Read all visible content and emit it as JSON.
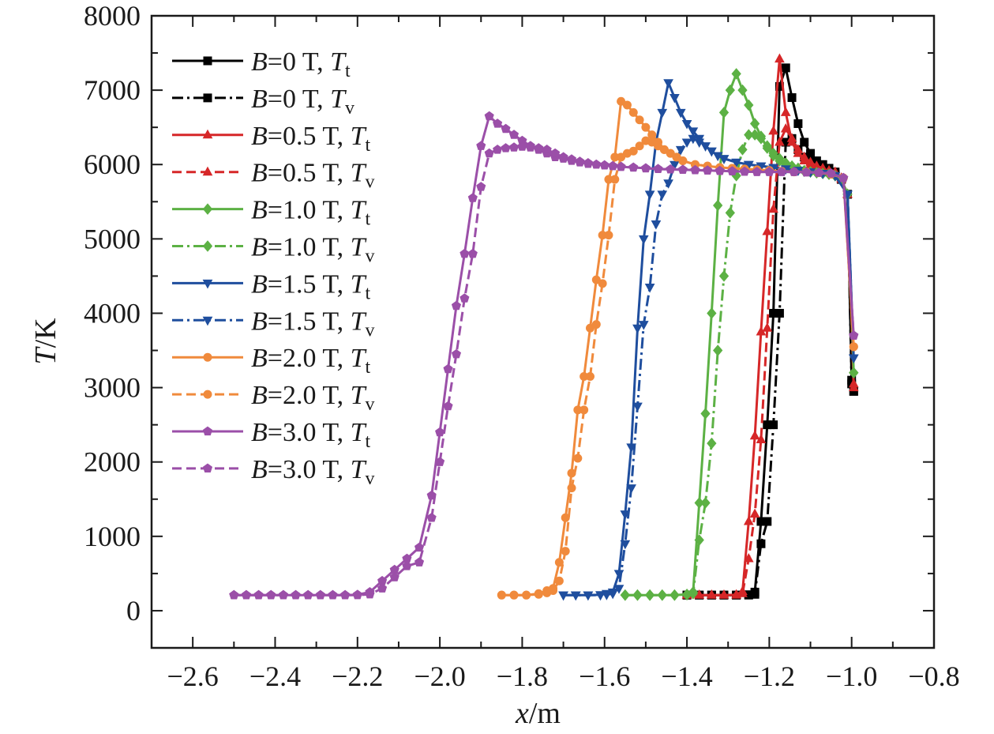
{
  "chart_data": {
    "type": "line",
    "title": "",
    "xlabel": {
      "var": "x",
      "unit": "/m"
    },
    "ylabel": {
      "var": "T",
      "unit": "/K"
    },
    "xlim": [
      -2.7,
      -0.8
    ],
    "ylim": [
      -500,
      8000
    ],
    "x_ticks": [
      -2.6,
      -2.4,
      -2.2,
      -2.0,
      -1.8,
      -1.6,
      -1.4,
      -1.2,
      -1.0,
      -0.8
    ],
    "x_tick_labels": [
      "−2.6",
      "−2.4",
      "−2.2",
      "−2.0",
      "−1.8",
      "−1.6",
      "−1.4",
      "−1.2",
      "−1.0",
      "−0.8"
    ],
    "y_ticks": [
      0,
      1000,
      2000,
      3000,
      4000,
      5000,
      6000,
      7000,
      8000
    ],
    "y_tick_labels": [
      "0",
      "1000",
      "2000",
      "3000",
      "4000",
      "5000",
      "6000",
      "7000",
      "8000"
    ],
    "legend_position": "top-left",
    "series": [
      {
        "legend": {
          "prefix": "B",
          "value": "=0 T, ",
          "var": "T",
          "sub": "t"
        },
        "color": "#000000",
        "dash": "solid",
        "marker": "square",
        "x": [
          -1.4,
          -1.37,
          -1.34,
          -1.31,
          -1.28,
          -1.25,
          -1.235,
          -1.22,
          -1.205,
          -1.19,
          -1.175,
          -1.16,
          -1.145,
          -1.13,
          -1.115,
          -1.1,
          -1.085,
          -1.07,
          -1.055,
          -1.04,
          -1.025,
          -1.01,
          -1.0,
          -0.995
        ],
        "y": [
          210,
          210,
          210,
          210,
          210,
          215,
          250,
          1200,
          2500,
          4000,
          7050,
          7300,
          6900,
          6550,
          6300,
          6150,
          6050,
          6000,
          5950,
          5900,
          5800,
          5600,
          3100,
          2950
        ]
      },
      {
        "legend": {
          "prefix": "B",
          "value": "=0 T, ",
          "var": "T",
          "sub": "v"
        },
        "color": "#000000",
        "dash": "dashdot",
        "marker": "square",
        "x": [
          -1.4,
          -1.37,
          -1.34,
          -1.31,
          -1.28,
          -1.25,
          -1.235,
          -1.22,
          -1.205,
          -1.19,
          -1.175,
          -1.16,
          -1.145,
          -1.13,
          -1.115,
          -1.1,
          -1.085,
          -1.07,
          -1.055,
          -1.04,
          -1.025,
          -1.01,
          -1.0,
          -0.995
        ],
        "y": [
          210,
          210,
          210,
          210,
          210,
          210,
          220,
          900,
          1200,
          2500,
          4000,
          6300,
          6350,
          6200,
          6100,
          6050,
          6000,
          5950,
          5900,
          5870,
          5800,
          5600,
          3050,
          2950
        ]
      },
      {
        "legend": {
          "prefix": "B",
          "value": "=0.5 T, ",
          "var": "T",
          "sub": "t"
        },
        "color": "#d62728",
        "dash": "solid",
        "marker": "triangle-up",
        "x": [
          -1.4,
          -1.37,
          -1.34,
          -1.31,
          -1.28,
          -1.265,
          -1.25,
          -1.235,
          -1.22,
          -1.205,
          -1.19,
          -1.175,
          -1.16,
          -1.145,
          -1.13,
          -1.115,
          -1.1,
          -1.085,
          -1.07,
          -1.055,
          -1.04,
          -1.025,
          -1.01,
          -0.995
        ],
        "y": [
          210,
          210,
          210,
          210,
          215,
          260,
          1200,
          2350,
          3750,
          5100,
          6450,
          7420,
          6700,
          6300,
          6150,
          6050,
          6000,
          5950,
          5920,
          5900,
          5880,
          5800,
          5600,
          3050
        ]
      },
      {
        "legend": {
          "prefix": "B",
          "value": "=0.5 T, ",
          "var": "T",
          "sub": "v"
        },
        "color": "#d62728",
        "dash": "dash",
        "marker": "triangle-up",
        "x": [
          -1.4,
          -1.37,
          -1.34,
          -1.31,
          -1.28,
          -1.265,
          -1.25,
          -1.235,
          -1.22,
          -1.205,
          -1.19,
          -1.175,
          -1.16,
          -1.145,
          -1.13,
          -1.115,
          -1.1,
          -1.085,
          -1.07,
          -1.055,
          -1.04,
          -1.025,
          -1.01,
          -0.995
        ],
        "y": [
          210,
          210,
          210,
          210,
          210,
          230,
          700,
          1300,
          2300,
          3800,
          5400,
          6300,
          6480,
          6350,
          6200,
          6100,
          6030,
          5980,
          5950,
          5920,
          5900,
          5820,
          5600,
          3000
        ]
      },
      {
        "legend": {
          "prefix": "B",
          "value": "=1.0 T, ",
          "var": "T",
          "sub": "t"
        },
        "color": "#5cb144",
        "dash": "solid",
        "marker": "diamond",
        "x": [
          -1.55,
          -1.52,
          -1.49,
          -1.46,
          -1.43,
          -1.4,
          -1.385,
          -1.37,
          -1.355,
          -1.34,
          -1.325,
          -1.31,
          -1.295,
          -1.28,
          -1.265,
          -1.25,
          -1.235,
          -1.22,
          -1.205,
          -1.19,
          -1.175,
          -1.16,
          -1.145,
          -1.13,
          -1.115,
          -1.1,
          -1.085,
          -1.07,
          -1.055,
          -1.04,
          -1.025,
          -1.01,
          -0.995
        ],
        "y": [
          210,
          210,
          210,
          210,
          210,
          220,
          250,
          1450,
          2650,
          4000,
          5450,
          6700,
          7000,
          7220,
          7000,
          6800,
          6550,
          6380,
          6220,
          6120,
          6050,
          6000,
          5960,
          5930,
          5910,
          5900,
          5890,
          5880,
          5870,
          5850,
          5800,
          5600,
          3200
        ]
      },
      {
        "legend": {
          "prefix": "B",
          "value": "=1.0 T, ",
          "var": "T",
          "sub": "v"
        },
        "color": "#5cb144",
        "dash": "dashdot",
        "marker": "diamond",
        "x": [
          -1.55,
          -1.52,
          -1.49,
          -1.46,
          -1.43,
          -1.4,
          -1.385,
          -1.37,
          -1.355,
          -1.34,
          -1.325,
          -1.31,
          -1.295,
          -1.28,
          -1.265,
          -1.25,
          -1.235,
          -1.22,
          -1.205,
          -1.19,
          -1.175,
          -1.16,
          -1.145,
          -1.13,
          -1.115,
          -1.1,
          -1.085,
          -1.07,
          -1.055,
          -1.04,
          -1.025,
          -1.01,
          -0.995
        ],
        "y": [
          210,
          210,
          210,
          210,
          210,
          215,
          230,
          950,
          1450,
          2250,
          3500,
          4500,
          5350,
          5850,
          6200,
          6400,
          6400,
          6350,
          6250,
          6150,
          6080,
          6020,
          5980,
          5950,
          5920,
          5900,
          5890,
          5880,
          5870,
          5850,
          5800,
          5600,
          3200
        ]
      },
      {
        "legend": {
          "prefix": "B",
          "value": "=1.5 T, ",
          "var": "T",
          "sub": "t"
        },
        "color": "#1f4e9e",
        "dash": "solid",
        "marker": "triangle-down",
        "x": [
          -1.7,
          -1.67,
          -1.64,
          -1.61,
          -1.595,
          -1.58,
          -1.565,
          -1.55,
          -1.535,
          -1.52,
          -1.505,
          -1.49,
          -1.475,
          -1.46,
          -1.445,
          -1.43,
          -1.415,
          -1.4,
          -1.385,
          -1.37,
          -1.355,
          -1.34,
          -1.325,
          -1.31,
          -1.28,
          -1.25,
          -1.22,
          -1.19,
          -1.16,
          -1.13,
          -1.1,
          -1.07,
          -1.04,
          -1.01,
          -0.995
        ],
        "y": [
          210,
          210,
          210,
          215,
          230,
          250,
          500,
          1300,
          2200,
          3800,
          5000,
          5600,
          6300,
          6700,
          7100,
          6900,
          6700,
          6550,
          6450,
          6350,
          6250,
          6180,
          6120,
          6080,
          6030,
          6000,
          5980,
          5960,
          5940,
          5920,
          5900,
          5880,
          5850,
          5600,
          3400
        ]
      },
      {
        "legend": {
          "prefix": "B",
          "value": "=1.5 T, ",
          "var": "T",
          "sub": "v"
        },
        "color": "#1f4e9e",
        "dash": "dashdot",
        "marker": "triangle-down",
        "x": [
          -1.7,
          -1.67,
          -1.64,
          -1.61,
          -1.595,
          -1.58,
          -1.565,
          -1.55,
          -1.535,
          -1.52,
          -1.505,
          -1.49,
          -1.475,
          -1.46,
          -1.445,
          -1.43,
          -1.415,
          -1.4,
          -1.385,
          -1.37,
          -1.355,
          -1.34,
          -1.325,
          -1.31,
          -1.28,
          -1.25,
          -1.22,
          -1.19,
          -1.16,
          -1.13,
          -1.1,
          -1.07,
          -1.04,
          -1.01,
          -0.995
        ],
        "y": [
          210,
          210,
          210,
          210,
          215,
          230,
          300,
          900,
          1650,
          2750,
          3850,
          4350,
          5200,
          5600,
          5750,
          6000,
          6200,
          6300,
          6350,
          6300,
          6250,
          6180,
          6120,
          6080,
          6030,
          6000,
          5980,
          5960,
          5940,
          5920,
          5900,
          5880,
          5850,
          5600,
          3400
        ]
      },
      {
        "legend": {
          "prefix": "B",
          "value": "=2.0 T, ",
          "var": "T",
          "sub": "t"
        },
        "color": "#f08a3c",
        "dash": "solid",
        "marker": "circle",
        "x": [
          -1.85,
          -1.82,
          -1.79,
          -1.76,
          -1.74,
          -1.725,
          -1.71,
          -1.695,
          -1.68,
          -1.665,
          -1.65,
          -1.635,
          -1.62,
          -1.605,
          -1.59,
          -1.575,
          -1.56,
          -1.545,
          -1.53,
          -1.515,
          -1.5,
          -1.485,
          -1.47,
          -1.455,
          -1.44,
          -1.425,
          -1.41,
          -1.38,
          -1.35,
          -1.32,
          -1.29,
          -1.26,
          -1.23,
          -1.2,
          -1.17,
          -1.14,
          -1.11,
          -1.08,
          -1.05,
          -1.02,
          -0.995
        ],
        "y": [
          210,
          210,
          210,
          230,
          270,
          300,
          650,
          1250,
          1850,
          2700,
          3150,
          3800,
          4450,
          5050,
          5800,
          6100,
          6850,
          6800,
          6700,
          6600,
          6500,
          6400,
          6300,
          6200,
          6150,
          6100,
          6050,
          6000,
          5980,
          5960,
          5950,
          5940,
          5930,
          5920,
          5910,
          5900,
          5900,
          5890,
          5870,
          5820,
          3550
        ]
      },
      {
        "legend": {
          "prefix": "B",
          "value": "=2.0 T, ",
          "var": "T",
          "sub": "v"
        },
        "color": "#f08a3c",
        "dash": "dash",
        "marker": "circle",
        "x": [
          -1.85,
          -1.82,
          -1.79,
          -1.76,
          -1.74,
          -1.725,
          -1.71,
          -1.695,
          -1.68,
          -1.665,
          -1.65,
          -1.635,
          -1.62,
          -1.605,
          -1.59,
          -1.575,
          -1.56,
          -1.545,
          -1.53,
          -1.515,
          -1.5,
          -1.485,
          -1.47,
          -1.455,
          -1.44,
          -1.425,
          -1.41,
          -1.38,
          -1.35,
          -1.32,
          -1.29,
          -1.26,
          -1.23,
          -1.2,
          -1.17,
          -1.14,
          -1.11,
          -1.08,
          -1.05,
          -1.02,
          -0.995
        ],
        "y": [
          210,
          210,
          210,
          220,
          240,
          270,
          400,
          800,
          1650,
          2050,
          2700,
          3150,
          3850,
          4400,
          5050,
          5800,
          6100,
          6150,
          6180,
          6250,
          6320,
          6300,
          6250,
          6200,
          6150,
          6100,
          6050,
          6000,
          5980,
          5960,
          5950,
          5940,
          5930,
          5920,
          5910,
          5900,
          5900,
          5890,
          5870,
          5820,
          3550
        ]
      },
      {
        "legend": {
          "prefix": "B",
          "value": "=3.0 T, ",
          "var": "T",
          "sub": "t"
        },
        "color": "#9b4fa8",
        "dash": "solid",
        "marker": "pentagon",
        "x": [
          -2.5,
          -2.47,
          -2.44,
          -2.41,
          -2.38,
          -2.35,
          -2.32,
          -2.29,
          -2.26,
          -2.23,
          -2.2,
          -2.17,
          -2.14,
          -2.11,
          -2.08,
          -2.05,
          -2.02,
          -2.0,
          -1.98,
          -1.96,
          -1.94,
          -1.92,
          -1.9,
          -1.88,
          -1.86,
          -1.84,
          -1.82,
          -1.8,
          -1.78,
          -1.76,
          -1.74,
          -1.72,
          -1.7,
          -1.68,
          -1.66,
          -1.64,
          -1.62,
          -1.6,
          -1.58,
          -1.56,
          -1.53,
          -1.5,
          -1.47,
          -1.44,
          -1.41,
          -1.38,
          -1.35,
          -1.32,
          -1.29,
          -1.26,
          -1.23,
          -1.2,
          -1.17,
          -1.14,
          -1.11,
          -1.08,
          -1.05,
          -1.02,
          -0.995
        ],
        "y": [
          210,
          210,
          210,
          210,
          210,
          210,
          210,
          210,
          210,
          210,
          215,
          250,
          400,
          550,
          700,
          850,
          1550,
          2400,
          3250,
          4100,
          4800,
          5550,
          6250,
          6650,
          6550,
          6480,
          6400,
          6320,
          6250,
          6200,
          6150,
          6100,
          6080,
          6050,
          6030,
          6010,
          6000,
          5990,
          5980,
          5970,
          5960,
          5950,
          5940,
          5935,
          5930,
          5925,
          5920,
          5915,
          5910,
          5905,
          5900,
          5900,
          5900,
          5900,
          5895,
          5890,
          5880,
          5820,
          3700
        ]
      },
      {
        "legend": {
          "prefix": "B",
          "value": "=3.0 T, ",
          "var": "T",
          "sub": "v"
        },
        "color": "#9b4fa8",
        "dash": "dash",
        "marker": "pentagon",
        "x": [
          -2.5,
          -2.47,
          -2.44,
          -2.41,
          -2.38,
          -2.35,
          -2.32,
          -2.29,
          -2.26,
          -2.23,
          -2.2,
          -2.17,
          -2.14,
          -2.11,
          -2.08,
          -2.05,
          -2.02,
          -2.0,
          -1.98,
          -1.96,
          -1.94,
          -1.92,
          -1.9,
          -1.88,
          -1.86,
          -1.84,
          -1.82,
          -1.8,
          -1.78,
          -1.76,
          -1.74,
          -1.72,
          -1.7,
          -1.68,
          -1.66,
          -1.64,
          -1.62,
          -1.6,
          -1.58,
          -1.56,
          -1.53,
          -1.5,
          -1.47,
          -1.44,
          -1.41,
          -1.38,
          -1.35,
          -1.32,
          -1.29,
          -1.26,
          -1.23,
          -1.2,
          -1.17,
          -1.14,
          -1.11,
          -1.08,
          -1.05,
          -1.02,
          -0.995
        ],
        "y": [
          210,
          210,
          210,
          210,
          210,
          210,
          210,
          210,
          210,
          210,
          210,
          220,
          300,
          450,
          600,
          650,
          1250,
          2000,
          2750,
          3450,
          4200,
          4800,
          5700,
          6150,
          6200,
          6220,
          6230,
          6240,
          6230,
          6220,
          6200,
          6150,
          6100,
          6070,
          6040,
          6020,
          6000,
          5990,
          5980,
          5970,
          5960,
          5950,
          5940,
          5935,
          5930,
          5925,
          5920,
          5915,
          5910,
          5905,
          5900,
          5900,
          5900,
          5900,
          5895,
          5890,
          5880,
          5820,
          3700
        ]
      }
    ]
  }
}
